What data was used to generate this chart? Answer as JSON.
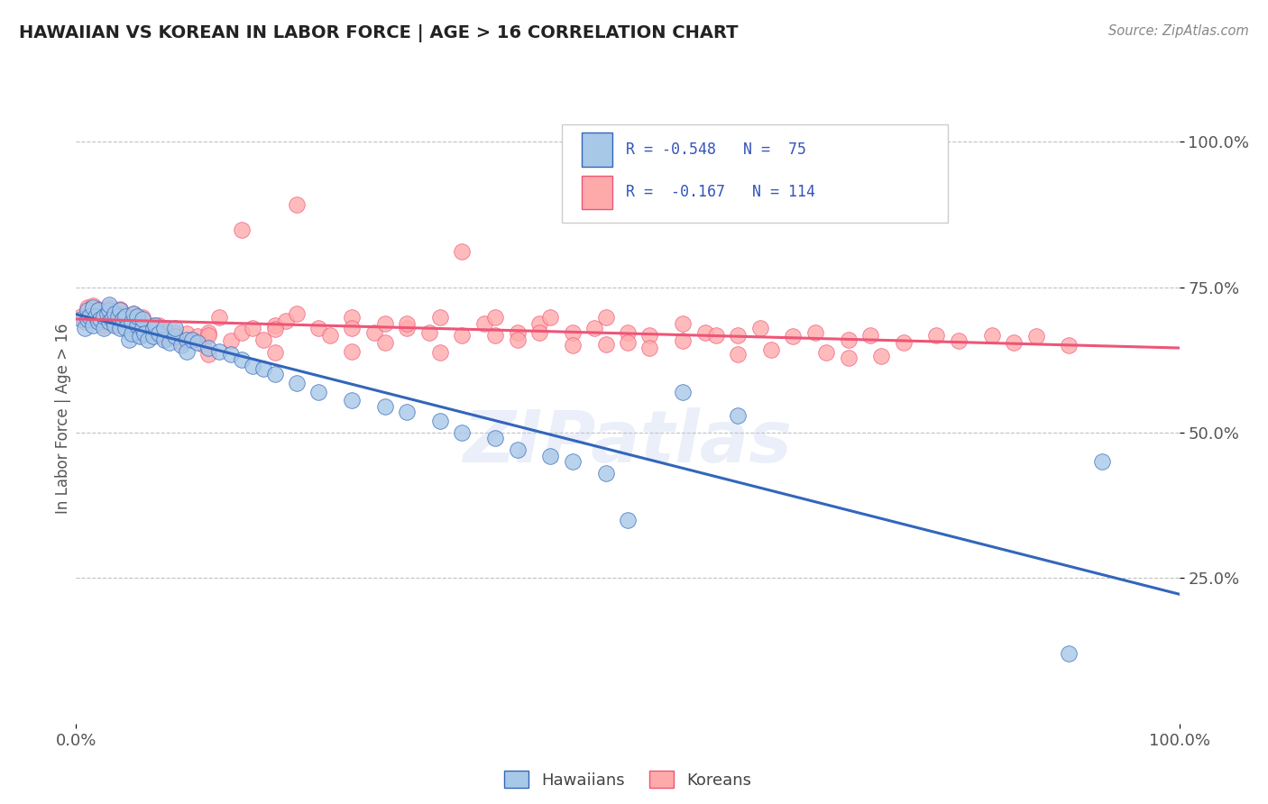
{
  "title": "HAWAIIAN VS KOREAN IN LABOR FORCE | AGE > 16 CORRELATION CHART",
  "source_text": "Source: ZipAtlas.com",
  "ylabel": "In Labor Force | Age > 16",
  "xlim": [
    0.0,
    1.0
  ],
  "ylim": [
    0.0,
    1.05
  ],
  "xtick_labels": [
    "0.0%",
    "100.0%"
  ],
  "ytick_labels": [
    "25.0%",
    "50.0%",
    "75.0%",
    "100.0%"
  ],
  "ytick_positions": [
    0.25,
    0.5,
    0.75,
    1.0
  ],
  "hawaiian_scatter_color": "#a8c8e8",
  "korean_scatter_color": "#ffaaaa",
  "trend_hawaiian_color": "#3366bb",
  "trend_korean_color": "#ee5577",
  "watermark_color": "#c8d8ee",
  "background_color": "#ffffff",
  "grid_color": "#bbbbbb",
  "title_color": "#222222",
  "source_color": "#888888",
  "text_color": "#3355bb",
  "tick_color": "#555555",
  "legend_border_color": "#cccccc",
  "hawaiian_x": [
    0.005,
    0.008,
    0.01,
    0.01,
    0.012,
    0.015,
    0.015,
    0.018,
    0.02,
    0.02,
    0.022,
    0.025,
    0.025,
    0.028,
    0.03,
    0.03,
    0.03,
    0.032,
    0.035,
    0.035,
    0.038,
    0.04,
    0.04,
    0.042,
    0.045,
    0.045,
    0.048,
    0.05,
    0.05,
    0.052,
    0.055,
    0.055,
    0.058,
    0.06,
    0.06,
    0.062,
    0.065,
    0.07,
    0.07,
    0.072,
    0.075,
    0.08,
    0.08,
    0.085,
    0.09,
    0.09,
    0.095,
    0.1,
    0.1,
    0.105,
    0.11,
    0.12,
    0.13,
    0.14,
    0.15,
    0.16,
    0.17,
    0.18,
    0.2,
    0.22,
    0.25,
    0.28,
    0.3,
    0.33,
    0.35,
    0.38,
    0.4,
    0.43,
    0.45,
    0.48,
    0.5,
    0.55,
    0.6,
    0.9,
    0.93
  ],
  "hawaiian_y": [
    0.695,
    0.68,
    0.71,
    0.695,
    0.7,
    0.685,
    0.715,
    0.7,
    0.69,
    0.71,
    0.695,
    0.68,
    0.7,
    0.705,
    0.69,
    0.71,
    0.72,
    0.695,
    0.685,
    0.705,
    0.7,
    0.68,
    0.71,
    0.695,
    0.7,
    0.68,
    0.66,
    0.69,
    0.67,
    0.705,
    0.685,
    0.7,
    0.665,
    0.68,
    0.695,
    0.67,
    0.66,
    0.68,
    0.665,
    0.685,
    0.67,
    0.66,
    0.68,
    0.655,
    0.665,
    0.68,
    0.65,
    0.66,
    0.64,
    0.66,
    0.655,
    0.645,
    0.64,
    0.635,
    0.625,
    0.615,
    0.61,
    0.6,
    0.585,
    0.57,
    0.555,
    0.545,
    0.535,
    0.52,
    0.5,
    0.49,
    0.47,
    0.46,
    0.45,
    0.43,
    0.35,
    0.57,
    0.53,
    0.12,
    0.45
  ],
  "korean_x": [
    0.005,
    0.008,
    0.01,
    0.01,
    0.012,
    0.015,
    0.015,
    0.018,
    0.02,
    0.02,
    0.022,
    0.025,
    0.025,
    0.028,
    0.03,
    0.03,
    0.032,
    0.035,
    0.035,
    0.038,
    0.04,
    0.04,
    0.042,
    0.045,
    0.048,
    0.05,
    0.05,
    0.052,
    0.055,
    0.058,
    0.06,
    0.06,
    0.065,
    0.07,
    0.07,
    0.075,
    0.08,
    0.085,
    0.09,
    0.095,
    0.1,
    0.105,
    0.11,
    0.115,
    0.12,
    0.13,
    0.14,
    0.15,
    0.16,
    0.17,
    0.18,
    0.19,
    0.2,
    0.22,
    0.23,
    0.25,
    0.27,
    0.28,
    0.3,
    0.32,
    0.33,
    0.35,
    0.37,
    0.38,
    0.4,
    0.42,
    0.43,
    0.45,
    0.47,
    0.48,
    0.5,
    0.52,
    0.55,
    0.57,
    0.6,
    0.62,
    0.65,
    0.67,
    0.7,
    0.72,
    0.75,
    0.78,
    0.8,
    0.83,
    0.85,
    0.87,
    0.9,
    0.25,
    0.35,
    0.42,
    0.2,
    0.3,
    0.15,
    0.08,
    0.12,
    0.18,
    0.28,
    0.38,
    0.48,
    0.58,
    0.5,
    0.4,
    0.33,
    0.25,
    0.18,
    0.12,
    0.55,
    0.63,
    0.68,
    0.73,
    0.45,
    0.52,
    0.6,
    0.7
  ],
  "korean_y": [
    0.7,
    0.69,
    0.715,
    0.698,
    0.705,
    0.695,
    0.718,
    0.702,
    0.695,
    0.712,
    0.698,
    0.685,
    0.703,
    0.708,
    0.692,
    0.715,
    0.698,
    0.688,
    0.708,
    0.702,
    0.692,
    0.712,
    0.698,
    0.703,
    0.695,
    0.695,
    0.678,
    0.705,
    0.69,
    0.668,
    0.685,
    0.698,
    0.672,
    0.685,
    0.668,
    0.685,
    0.675,
    0.662,
    0.672,
    0.655,
    0.67,
    0.66,
    0.665,
    0.652,
    0.672,
    0.698,
    0.658,
    0.672,
    0.68,
    0.66,
    0.685,
    0.692,
    0.705,
    0.68,
    0.668,
    0.698,
    0.672,
    0.688,
    0.68,
    0.672,
    0.698,
    0.668,
    0.688,
    0.698,
    0.672,
    0.688,
    0.698,
    0.672,
    0.68,
    0.698,
    0.672,
    0.668,
    0.688,
    0.672,
    0.668,
    0.68,
    0.665,
    0.672,
    0.66,
    0.668,
    0.655,
    0.668,
    0.658,
    0.668,
    0.655,
    0.665,
    0.65,
    0.68,
    0.812,
    0.672,
    0.892,
    0.688,
    0.848,
    0.662,
    0.668,
    0.678,
    0.655,
    0.668,
    0.652,
    0.668,
    0.655,
    0.66,
    0.638,
    0.64,
    0.638,
    0.635,
    0.658,
    0.642,
    0.638,
    0.632,
    0.65,
    0.645,
    0.635,
    0.628
  ]
}
